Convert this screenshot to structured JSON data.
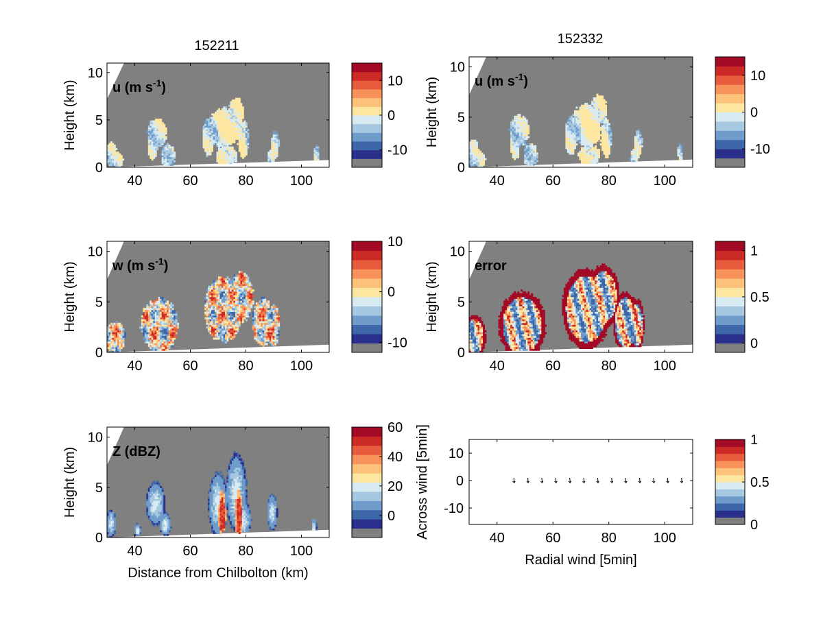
{
  "figure": {
    "left_title": "152211",
    "right_title": "152332"
  },
  "colors": {
    "background_gray": "#808080",
    "frame": "#000000",
    "palette": [
      "#2b2f8c",
      "#3d67a9",
      "#6f9ccb",
      "#a6c8e1",
      "#d8eaf2",
      "#fde6a0",
      "#fdc27a",
      "#f7935a",
      "#e75c3d",
      "#cc2a27",
      "#a30a26"
    ]
  },
  "chart_data": [
    {
      "id": "u-152211",
      "type": "heatmap",
      "panel_label": "u (m s",
      "panel_label_sup": "-1",
      "panel_label_end": ")",
      "xlabel": "",
      "ylabel": "Height (km)",
      "xlim": [
        30,
        110
      ],
      "ylim": [
        0,
        11
      ],
      "xticks": [
        "40",
        "60",
        "80",
        "100"
      ],
      "yticks": [
        "0",
        "5",
        "10"
      ],
      "colorbar": {
        "clim": [
          -15,
          15
        ],
        "ticks": [
          {
            "v": 10,
            "label": "10"
          },
          {
            "v": 0,
            "label": "0"
          },
          {
            "v": -10,
            "label": "-10"
          }
        ]
      },
      "mode": "uwind"
    },
    {
      "id": "u-152332",
      "type": "heatmap",
      "panel_label": "u (m s",
      "panel_label_sup": "-1",
      "panel_label_end": ")",
      "xlabel": "",
      "ylabel": "Height (km)",
      "xlim": [
        30,
        110
      ],
      "ylim": [
        0,
        11
      ],
      "xticks": [
        "40",
        "60",
        "80",
        "100"
      ],
      "yticks": [
        "0",
        "5",
        "10"
      ],
      "colorbar": {
        "clim": [
          -15,
          15
        ],
        "ticks": [
          {
            "v": 10,
            "label": "10"
          },
          {
            "v": 0,
            "label": "0"
          },
          {
            "v": -10,
            "label": "-10"
          }
        ]
      },
      "mode": "uwind"
    },
    {
      "id": "w-152211",
      "type": "heatmap",
      "panel_label": "w (m s",
      "panel_label_sup": "-1",
      "panel_label_end": ")",
      "xlabel": "",
      "ylabel": "Height (km)",
      "xlim": [
        30,
        110
      ],
      "ylim": [
        0,
        11
      ],
      "xticks": [
        "40",
        "60",
        "80",
        "100"
      ],
      "yticks": [
        "0",
        "5",
        "10"
      ],
      "colorbar": {
        "clim": [
          -12,
          10
        ],
        "ticks": [
          {
            "v": 10,
            "label": "10"
          },
          {
            "v": 0,
            "label": "0"
          },
          {
            "v": -10,
            "label": "-10"
          }
        ]
      },
      "mode": "wwind"
    },
    {
      "id": "error-152332",
      "type": "heatmap",
      "panel_label": "error",
      "panel_label_sup": "",
      "panel_label_end": "",
      "xlabel": "",
      "ylabel": "Height (km)",
      "xlim": [
        30,
        110
      ],
      "ylim": [
        0,
        11
      ],
      "xticks": [
        "40",
        "60",
        "80",
        "100"
      ],
      "yticks": [
        "0",
        "5",
        "10"
      ],
      "colorbar": {
        "clim": [
          -0.1,
          1.1
        ],
        "ticks": [
          {
            "v": 1,
            "label": "1"
          },
          {
            "v": 0.5,
            "label": "0.5"
          },
          {
            "v": 0,
            "label": "0"
          }
        ]
      },
      "mode": "error"
    },
    {
      "id": "Z-152211",
      "type": "heatmap",
      "panel_label": "Z (dBZ)",
      "panel_label_sup": "",
      "panel_label_end": "",
      "xlabel": "Distance from Chilbolton (km)",
      "ylabel": "Height (km)",
      "xlim": [
        30,
        110
      ],
      "ylim": [
        0,
        11
      ],
      "xticks": [
        "40",
        "60",
        "80",
        "100"
      ],
      "yticks": [
        "0",
        "5",
        "10"
      ],
      "colorbar": {
        "clim": [
          -15,
          60
        ],
        "ticks": [
          {
            "v": 60,
            "label": "60"
          },
          {
            "v": 40,
            "label": "40"
          },
          {
            "v": 20,
            "label": "20"
          },
          {
            "v": 0,
            "label": "0"
          }
        ]
      },
      "mode": "refl"
    },
    {
      "id": "quiver",
      "type": "scatter",
      "panel_label": "",
      "xlabel": "Radial wind [5min]",
      "ylabel": "Across wind [5min]",
      "xlim": [
        30,
        110
      ],
      "ylim": [
        -16,
        15
      ],
      "xticks": [
        "40",
        "60",
        "80",
        "100"
      ],
      "yticks": [
        "-10",
        "0",
        "10"
      ],
      "yticks_values": [
        -10,
        0,
        10
      ],
      "colorbar": {
        "clim": [
          0,
          1
        ],
        "ticks": [
          {
            "v": 1,
            "label": "1"
          },
          {
            "v": 0.5,
            "label": "0.5"
          },
          {
            "v": 0,
            "label": "0"
          }
        ]
      },
      "arrows_x": [
        46,
        51,
        56,
        61,
        66,
        71,
        76,
        81,
        86,
        91,
        96,
        101,
        106
      ],
      "arrows_y": [
        0,
        0,
        0,
        0,
        0,
        0,
        0,
        0,
        0,
        0,
        0,
        0,
        0
      ]
    }
  ]
}
